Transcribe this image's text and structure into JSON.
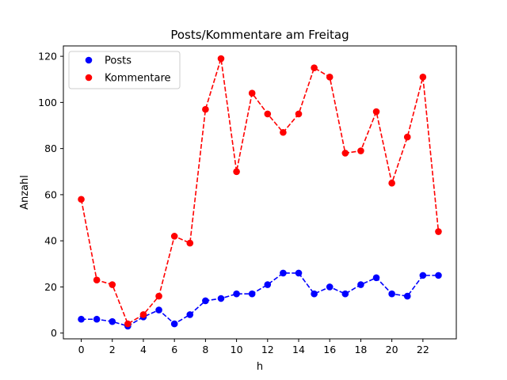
{
  "chart_data": {
    "type": "line",
    "title": "Posts/Kommentare am Freitag",
    "xlabel": "h",
    "ylabel": "Anzahl",
    "x": [
      0,
      1,
      2,
      3,
      4,
      5,
      6,
      7,
      8,
      9,
      10,
      11,
      12,
      13,
      14,
      15,
      16,
      17,
      18,
      19,
      20,
      21,
      22,
      23
    ],
    "xticks": [
      0,
      2,
      4,
      6,
      8,
      10,
      12,
      14,
      16,
      18,
      20,
      22
    ],
    "yticks": [
      0,
      20,
      40,
      60,
      80,
      100,
      120
    ],
    "xlim": [
      -1.15,
      24.15
    ],
    "ylim": [
      -2.5,
      124.5
    ],
    "grid": false,
    "legend_position": "top-left",
    "series": [
      {
        "name": "Posts",
        "color": "#0000ff",
        "line_style": "dashed",
        "marker": "circle",
        "values": [
          6,
          6,
          5,
          3,
          7,
          10,
          4,
          8,
          14,
          15,
          17,
          17,
          21,
          26,
          26,
          17,
          20,
          17,
          21,
          24,
          17,
          16,
          25,
          25
        ]
      },
      {
        "name": "Kommentare",
        "color": "#ff0000",
        "line_style": "dashed",
        "marker": "circle",
        "values": [
          58,
          23,
          21,
          4,
          8,
          16,
          42,
          39,
          97,
          119,
          70,
          104,
          95,
          87,
          95,
          115,
          111,
          78,
          79,
          96,
          65,
          85,
          111,
          44
        ]
      }
    ]
  }
}
